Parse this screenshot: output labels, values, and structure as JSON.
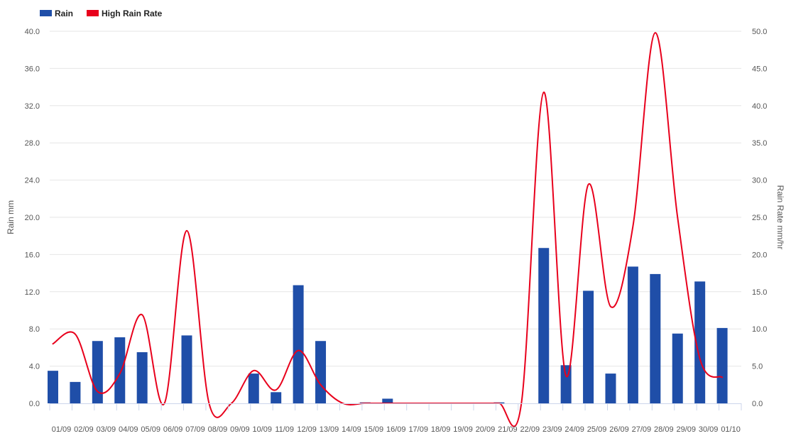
{
  "chart_data": {
    "type": "bar",
    "categories": [
      "01/09",
      "02/09",
      "03/09",
      "04/09",
      "05/09",
      "06/09",
      "07/09",
      "08/09",
      "09/09",
      "10/09",
      "11/09",
      "12/09",
      "13/09",
      "14/09",
      "15/09",
      "16/09",
      "17/09",
      "18/09",
      "19/09",
      "20/09",
      "21/09",
      "22/09",
      "23/09",
      "24/09",
      "25/09",
      "26/09",
      "27/09",
      "28/09",
      "29/09",
      "30/09",
      "01/10"
    ],
    "series": [
      {
        "name": "Rain",
        "type": "bar",
        "axis": "left",
        "color": "#1f4ea8",
        "values": [
          3.5,
          2.3,
          6.7,
          7.1,
          5.5,
          0,
          7.3,
          0,
          0,
          3.2,
          1.2,
          12.7,
          6.7,
          0,
          0.1,
          0.5,
          0,
          0,
          0,
          0,
          0.1,
          0,
          16.7,
          4.1,
          12.1,
          3.2,
          14.7,
          13.9,
          7.5,
          13.1,
          8.1
        ]
      },
      {
        "name": "High Rain Rate",
        "type": "line",
        "axis": "right",
        "color": "#e8001c",
        "values": [
          8.0,
          9.3,
          1.6,
          4.0,
          11.9,
          0,
          23.2,
          0,
          0,
          4.4,
          1.8,
          7.1,
          2.5,
          0,
          0,
          0,
          0,
          0,
          0,
          0,
          0,
          0,
          41.8,
          3.7,
          29.4,
          13.0,
          23.8,
          49.8,
          25.0,
          6.0,
          3.5
        ]
      }
    ],
    "ylabel": "Rain mm",
    "y2label": "Rain Rate mm/hr",
    "ylim": [
      0,
      40
    ],
    "y2lim": [
      0,
      50
    ],
    "yticks": [
      "0.0",
      "4.0",
      "8.0",
      "12.0",
      "16.0",
      "20.0",
      "24.0",
      "28.0",
      "32.0",
      "36.0",
      "40.0"
    ],
    "y2ticks": [
      "0.0",
      "5.0",
      "10.0",
      "15.0",
      "20.0",
      "25.0",
      "30.0",
      "35.0",
      "40.0",
      "45.0",
      "50.0"
    ],
    "grid": true,
    "legend_position": "top-left"
  }
}
